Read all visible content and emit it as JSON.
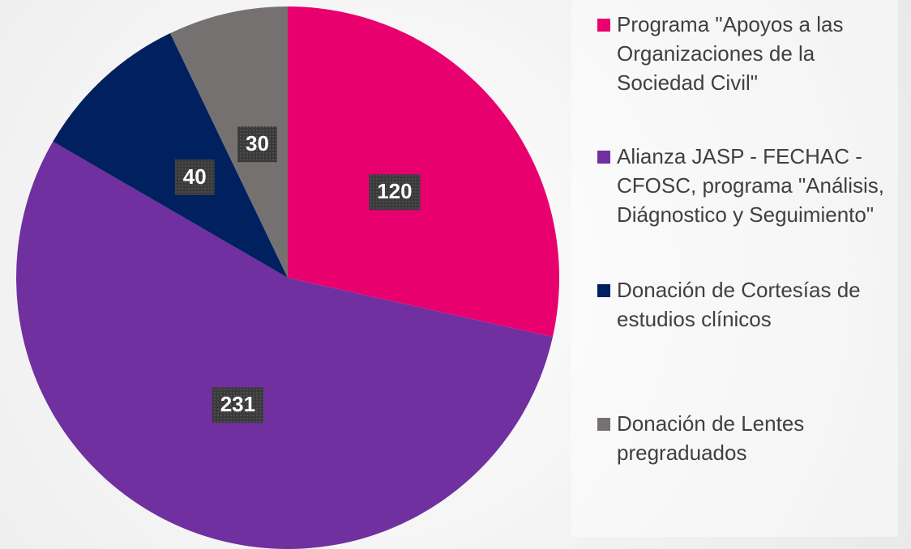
{
  "chart_data": {
    "type": "pie",
    "categories": [
      "Programa \"Apoyos a las Organizaciones de la Sociedad Civil\"",
      "Alianza JASP - FECHAC - CFOSC, programa \"Análisis, Diágnostico y Seguimiento\"",
      "Donación de Cortesías de estudios clínicos",
      "Donación de Lentes pregraduados"
    ],
    "values": [
      120,
      231,
      40,
      30
    ],
    "colors": [
      "#e8006f",
      "#7030a0",
      "#002060",
      "#767171"
    ],
    "legend": "right"
  }
}
